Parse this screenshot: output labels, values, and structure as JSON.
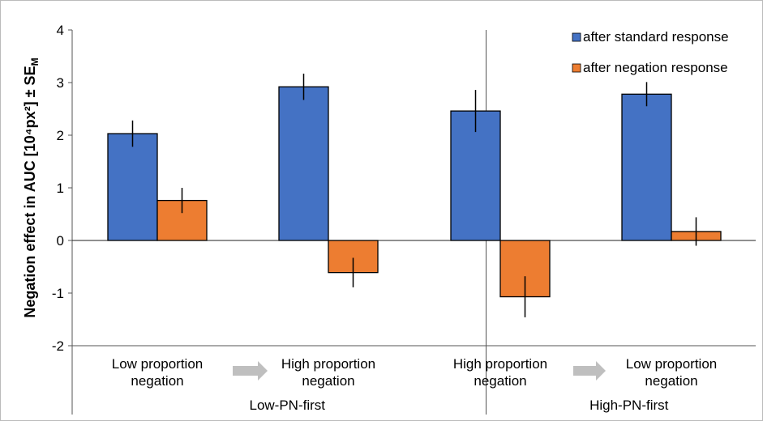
{
  "chart_data": {
    "type": "bar",
    "ylabel": "Negation effect in AUC [10⁴px²] ± SE",
    "ylabel_sub": "M",
    "ylim": [
      -2,
      4
    ],
    "yticks": [
      4,
      3,
      2,
      1,
      0,
      -1,
      -2
    ],
    "categories": [
      {
        "label_line1": "Low proportion",
        "label_line2": "negation"
      },
      {
        "label_line1": "High proportion",
        "label_line2": "negation"
      },
      {
        "label_line1": "High proportion",
        "label_line2": "negation"
      },
      {
        "label_line1": "Low proportion",
        "label_line2": "negation"
      }
    ],
    "groups": [
      "Low-PN-first",
      "High-PN-first"
    ],
    "series": [
      {
        "name": "after standard response",
        "color": "#4472C4",
        "values": [
          2.03,
          2.92,
          2.46,
          2.78
        ],
        "errors": [
          0.25,
          0.25,
          0.4,
          0.23
        ]
      },
      {
        "name": "after negation response",
        "color": "#ED7D31",
        "values": [
          0.76,
          -0.61,
          -1.07,
          0.17
        ],
        "errors": [
          0.24,
          0.28,
          0.39,
          0.27
        ]
      }
    ],
    "legend_position": "top-right",
    "transition_arrow_color": "#BFBFBF"
  }
}
